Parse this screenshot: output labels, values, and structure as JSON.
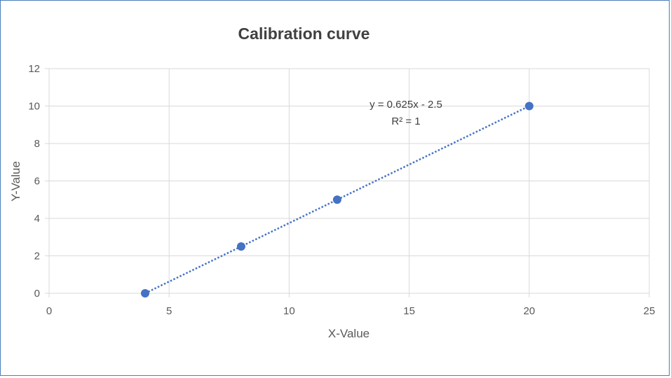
{
  "chart_data": {
    "type": "scatter",
    "title": "Calibration curve",
    "xlabel": "X-Value",
    "ylabel": "Y-Value",
    "xlim": [
      0,
      25
    ],
    "ylim": [
      0,
      12
    ],
    "xticks": [
      0,
      5,
      10,
      15,
      20,
      25
    ],
    "yticks": [
      0,
      2,
      4,
      6,
      8,
      10,
      12
    ],
    "grid": true,
    "legend": "none",
    "series": [
      {
        "x": [
          4,
          8,
          12,
          20
        ],
        "y": [
          0,
          2.5,
          5,
          10
        ],
        "color": "#4472c4"
      }
    ],
    "trendline": {
      "type": "linear",
      "style": "dotted",
      "color": "#4472c4",
      "x_range": [
        4,
        20
      ],
      "slope": 0.625,
      "intercept": -2.5,
      "equation_label": "y = 0.625x - 2.5",
      "r2_label": "R² = 1"
    }
  }
}
